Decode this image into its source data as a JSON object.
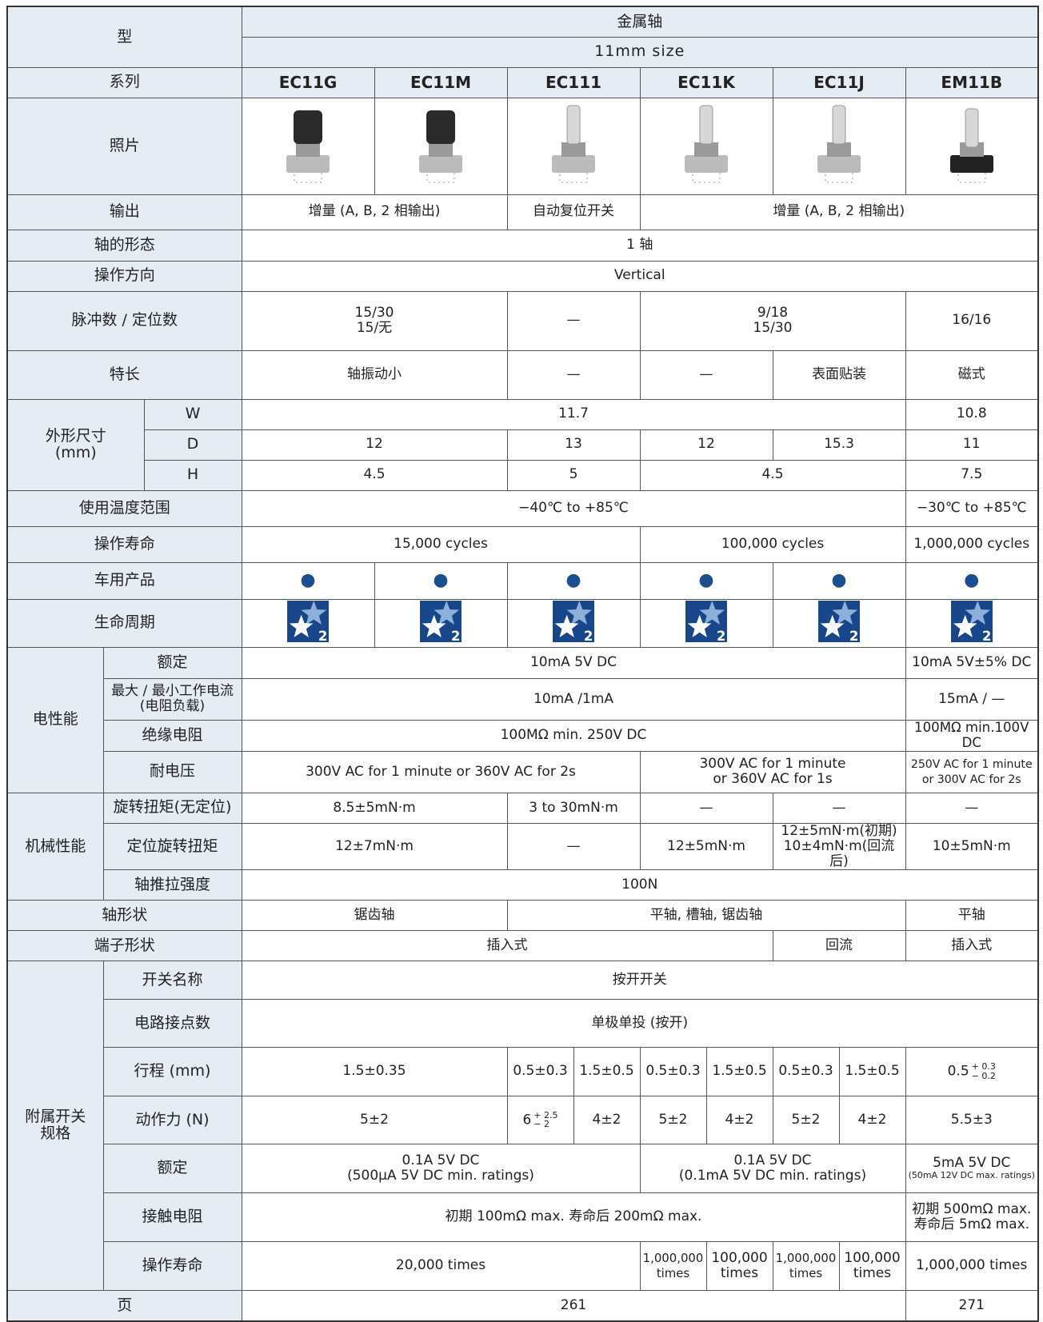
{
  "header": {
    "type_label": "型",
    "material": "金属轴",
    "size": "11mm size",
    "series_label": "系列",
    "series": [
      "EC11G",
      "EC11M",
      "EC111",
      "EC11K",
      "EC11J",
      "EM11B"
    ]
  },
  "sections": [
    {
      "label": "照片"
    },
    {
      "label": "输出",
      "cells": [
        "增量 (A, B, 2 相输出)",
        "自动复位开关",
        "增量 (A, B, 2 相输出)"
      ]
    },
    {
      "label": "轴的形态",
      "cells": [
        "1 轴"
      ]
    },
    {
      "label": "操作方向",
      "cells": [
        "Vertical"
      ]
    },
    {
      "label": "脉冲数 / 定位数",
      "cells": [
        "15/30\n15/无",
        "—",
        "9/18\n15/30",
        "16/16"
      ]
    },
    {
      "label": "特长",
      "cells": [
        "轴振动小",
        "—",
        "—",
        "表面贴装",
        "磁式"
      ]
    },
    {
      "group": "外形尺寸\n(mm)",
      "rows": [
        {
          "label": "W",
          "cells": [
            "11.7",
            "10.8"
          ]
        },
        {
          "label": "D",
          "cells": [
            "12",
            "13",
            "12",
            "15.3",
            "11"
          ]
        },
        {
          "label": "H",
          "cells": [
            "4.5",
            "5",
            "4.5",
            "7.5"
          ]
        }
      ]
    },
    {
      "label": "使用温度范围",
      "cells": [
        "−40℃ to +85℃",
        "−30℃ to +85℃"
      ]
    },
    {
      "label": "操作寿命",
      "cells": [
        "15,000 cycles",
        "100,000 cycles",
        "1,000,000 cycles"
      ]
    },
    {
      "label": "车用产品",
      "cells": [
        "●",
        "●",
        "●",
        "●",
        "●",
        "●"
      ]
    },
    {
      "label": "生命周期",
      "cells": [
        "2",
        "2",
        "2",
        "2",
        "2",
        "2"
      ]
    },
    {
      "group": "电性能",
      "rows": [
        {
          "label": "额定",
          "cells": [
            "10mA 5V DC",
            "10mA 5V±5% DC"
          ]
        },
        {
          "label": "最大 / 最小工作电流\n(电阻负载)",
          "cells": [
            "10mA /1mA",
            "15mA / —"
          ]
        },
        {
          "label": "绝缘电阻",
          "cells": [
            "100MΩ min. 250V DC",
            "100MΩ min.100V DC"
          ]
        },
        {
          "label": "耐电压",
          "cells": [
            "300V AC for 1 minute or 360V AC for 2s",
            "300V AC for 1 minute\nor 360V AC for 1s",
            "250V AC for 1 minute\nor 300V AC for 2s"
          ]
        }
      ]
    },
    {
      "group": "机械性能",
      "rows": [
        {
          "label": "旋转扭矩(无定位)",
          "cells": [
            "8.5±5mN·m",
            "3 to 30mN·m",
            "—",
            "—",
            "—"
          ]
        },
        {
          "label": "定位旋转扭矩",
          "cells": [
            "12±7mN·m",
            "—",
            "12±5mN·m",
            "12±5mN·m(初期)\n10±4mN·m(回流后)",
            "10±5mN·m"
          ]
        },
        {
          "label": "轴推拉强度",
          "cells": [
            "100N"
          ]
        }
      ]
    },
    {
      "label": "轴形状",
      "cells": [
        "锯齿轴",
        "平轴, 槽轴, 锯齿轴",
        "平轴"
      ]
    },
    {
      "label": "端子形状",
      "cells": [
        "插入式",
        "回流",
        "插入式"
      ]
    },
    {
      "group": "附属开关\n规格",
      "rows": [
        {
          "label": "开关名称",
          "cells": [
            "按开开关"
          ]
        },
        {
          "label": "电路接点数",
          "cells": [
            "单极单投 (按开)"
          ]
        },
        {
          "label": "行程 (mm)",
          "cells": [
            "1.5±0.35",
            "0.5±0.3",
            "1.5±0.5",
            "0.5±0.3",
            "1.5±0.5",
            "0.5±0.3",
            "1.5±0.5",
            {
              "base": "0.5",
              "upper": "+ 0.3",
              "lower": "− 0.2"
            }
          ]
        },
        {
          "label": "动作力 (N)",
          "cells": [
            "5±2",
            {
              "base": "6",
              "upper": "+ 2.5",
              "lower": "− 2"
            },
            "4±2",
            "5±2",
            "4±2",
            "5±2",
            "4±2",
            "5.5±3"
          ]
        },
        {
          "label": "额定",
          "cells": [
            "0.1A 5V DC\n(500μA 5V DC min. ratings)",
            "0.1A 5V DC\n(0.1mA 5V DC min. ratings)",
            {
              "main": "5mA 5V DC",
              "note": "(50mA 12V DC max. ratings)"
            }
          ]
        },
        {
          "label": "接触电阻",
          "cells": [
            "初期 100mΩ max. 寿命后 200mΩ max.",
            "初期 500mΩ max.\n寿命后 5mΩ max."
          ]
        },
        {
          "label": "操作寿命",
          "cells": [
            "20,000 times",
            "1,000,000\ntimes",
            "100,000\ntimes",
            "1,000,000\ntimes",
            "100,000\ntimes",
            "1,000,000 times"
          ]
        }
      ]
    },
    {
      "label": "页",
      "cells": [
        "261",
        "271"
      ]
    }
  ]
}
